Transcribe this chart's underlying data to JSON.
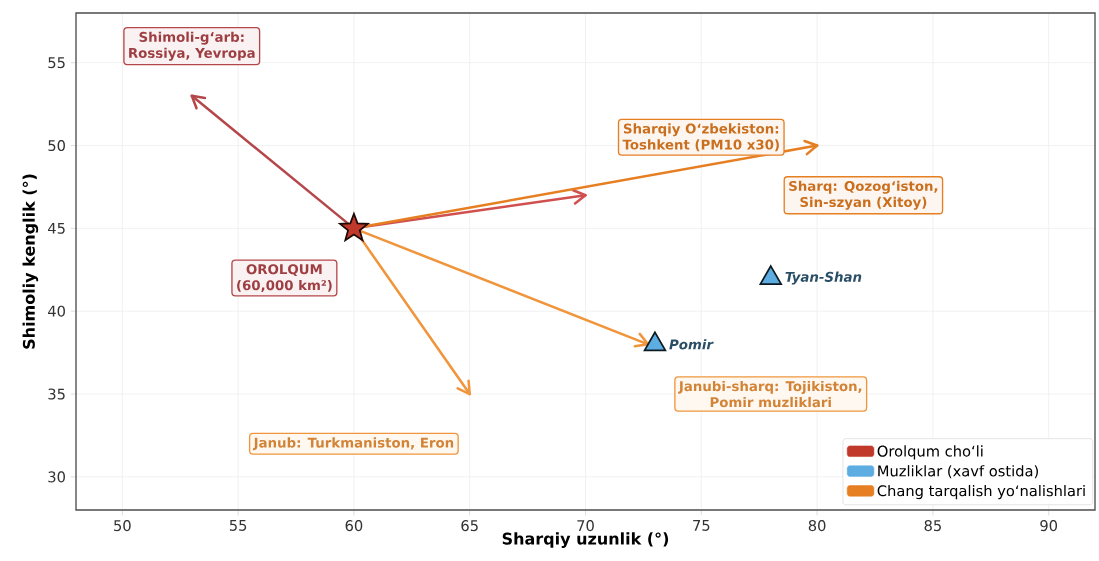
{
  "chart_data": {
    "type": "scatter",
    "xlabel": "Sharqiy uzunlik (°)",
    "ylabel": "Shimoliy kenglik (°)",
    "xlim": [
      48,
      92
    ],
    "ylim": [
      28,
      58
    ],
    "xticks": [
      50,
      55,
      60,
      65,
      70,
      75,
      80,
      85,
      90
    ],
    "yticks": [
      30,
      35,
      40,
      45,
      50,
      55
    ],
    "grid": true,
    "legend": "bottom right",
    "series": [
      {
        "name": "Orolqum cho‘li",
        "marker": "star",
        "color": "#c0392b",
        "x": [
          60
        ],
        "values": [
          45
        ]
      },
      {
        "name": "Muzliklar (xavf ostida)",
        "marker": "triangle",
        "color": "#5dade2",
        "x": [
          73,
          78
        ],
        "values": [
          38,
          42
        ],
        "value_labels": [
          "Pomir",
          "Tyan-Shan"
        ]
      },
      {
        "type": "line",
        "color": "#b5474b",
        "x": [
          60,
          53
        ],
        "values": [
          45,
          53
        ]
      },
      {
        "type": "line",
        "color": "#d0504f",
        "x": [
          60,
          70
        ],
        "values": [
          45,
          47
        ]
      },
      {
        "name": "Chang tarqalish yo‘nalishlari",
        "type": "line",
        "color": "#e67e22",
        "x": [
          60,
          80
        ],
        "values": [
          45,
          50
        ]
      },
      {
        "type": "line",
        "color": "#f0953c",
        "x": [
          60,
          72.7
        ],
        "values": [
          45,
          38
        ]
      },
      {
        "type": "line",
        "color": "#f0953c",
        "x": [
          60,
          65
        ],
        "values": [
          45,
          35
        ]
      }
    ],
    "annotations": [
      "Shimoli-g‘arb:\nRossiya, Yevropa",
      "Sharqiy O‘zbekiston:\nToshkent (PM10 x30)",
      "Sharq: Qozog‘iston,\nSin-szyan (Xitoy)",
      "OROLQUM\n(60,000 km²)",
      "Janubi-sharq: Tojikiston,\nPomir muzliklari",
      "Janub: Turkmaniston, Eron"
    ]
  }
}
